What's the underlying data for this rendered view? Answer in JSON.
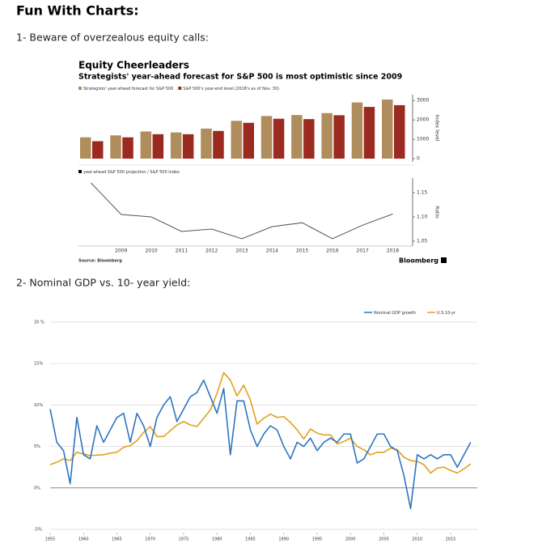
{
  "header": {
    "title": "Fun With Charts:"
  },
  "sections": [
    {
      "heading": "1-  Beware of overzealous equity calls:"
    },
    {
      "heading": "2- Nominal GDP vs. 10- year yield:"
    }
  ],
  "chart_data": [
    {
      "type": "bar",
      "title": "Equity Cheerleaders",
      "subtitle": "Strategists' year-ahead forecast for S&P 500 is most optimistic since 2009",
      "series": [
        {
          "name": "Strategists' year-ahead forecast for S&P 500",
          "color": "#b08d5c",
          "values": [
            1100,
            1200,
            1400,
            1350,
            1550,
            1950,
            2200,
            2250,
            2350,
            2900,
            3050
          ]
        },
        {
          "name": "S&P 500's year-end level (2018's as of Nov. 30)",
          "color": "#9b2b20",
          "values": [
            900,
            1100,
            1260,
            1260,
            1430,
            1850,
            2060,
            2040,
            2240,
            2670,
            2760
          ]
        }
      ],
      "ylim": [
        0,
        3300
      ],
      "yticks": [
        0,
        1000,
        2000,
        3000
      ],
      "y_label": "Index level",
      "source": "Source: Bloomberg",
      "brand": "Bloomberg"
    },
    {
      "type": "line",
      "categories": [
        null,
        "2009",
        "2010",
        "2011",
        "2012",
        "2013",
        "2014",
        "2015",
        "2016",
        "2017",
        "2018"
      ],
      "series": [
        {
          "name": "year-ahead S&P 500 projection / S&P 500 Index",
          "color": "#555555",
          "values": [
            1.17,
            1.105,
            1.1,
            1.07,
            1.075,
            1.055,
            1.08,
            1.088,
            1.055,
            1.083,
            1.106
          ]
        }
      ],
      "ylim": [
        1.04,
        1.18
      ],
      "yticks": [
        1.05,
        {
          "value": 1.1,
          "label": "1.10"
        },
        1.15
      ],
      "y_label": "Ratio"
    },
    {
      "type": "line",
      "x": [
        1955,
        1956,
        1957,
        1958,
        1959,
        1960,
        1961,
        1962,
        1963,
        1964,
        1965,
        1966,
        1967,
        1968,
        1969,
        1970,
        1971,
        1972,
        1973,
        1974,
        1975,
        1976,
        1977,
        1978,
        1979,
        1980,
        1981,
        1982,
        1983,
        1984,
        1985,
        1986,
        1987,
        1988,
        1989,
        1990,
        1991,
        1992,
        1993,
        1994,
        1995,
        1996,
        1997,
        1998,
        1999,
        2000,
        2001,
        2002,
        2003,
        2004,
        2005,
        2006,
        2007,
        2008,
        2009,
        2010,
        2011,
        2012,
        2013,
        2014,
        2015,
        2016,
        2017,
        2018
      ],
      "series": [
        {
          "name": "Nominal GDP growth",
          "color": "#2f74c0",
          "values": [
            9.5,
            5.5,
            4.5,
            0.5,
            8.5,
            4,
            3.5,
            7.5,
            5.5,
            7,
            8.5,
            9,
            5.5,
            9,
            7.5,
            5,
            8.5,
            10,
            11,
            8,
            9.5,
            11,
            11.5,
            13,
            11,
            9,
            12,
            4,
            10.5,
            10.5,
            7,
            5,
            6.5,
            7.5,
            7,
            5,
            3.5,
            5.5,
            5,
            6,
            4.5,
            5.5,
            6,
            5.5,
            6.5,
            6.5,
            3,
            3.5,
            5,
            6.5,
            6.5,
            5,
            4.5,
            1.5,
            -2.5,
            4,
            3.5,
            4,
            3.5,
            4,
            4,
            2.5,
            4,
            5.5
          ]
        },
        {
          "name": "U.S.10-yr",
          "color": "#e0a11b",
          "values": [
            2.8,
            3.1,
            3.5,
            3.3,
            4.3,
            4.1,
            3.9,
            3.95,
            4.0,
            4.2,
            4.3,
            4.9,
            5.1,
            5.7,
            6.7,
            7.4,
            6.2,
            6.2,
            6.9,
            7.6,
            8.0,
            7.6,
            7.4,
            8.4,
            9.4,
            11.4,
            13.9,
            13.0,
            11.1,
            12.4,
            10.6,
            7.7,
            8.4,
            8.9,
            8.5,
            8.6,
            7.9,
            7.0,
            5.9,
            7.1,
            6.6,
            6.4,
            6.4,
            5.3,
            5.6,
            6.0,
            5.0,
            4.6,
            4.0,
            4.3,
            4.3,
            4.8,
            4.6,
            3.7,
            3.3,
            3.2,
            2.8,
            1.8,
            2.4,
            2.5,
            2.1,
            1.8,
            2.3,
            2.9
          ]
        }
      ],
      "xlim": [
        1955,
        2019
      ],
      "xticks": [
        1955,
        1960,
        1965,
        1970,
        1975,
        1980,
        1985,
        1990,
        1995,
        2000,
        2005,
        2010,
        2015
      ],
      "ylim": [
        -5,
        20
      ],
      "yticks": [
        {
          "value": 20,
          "label": "20 %"
        },
        {
          "value": 15,
          "label": "15%"
        },
        {
          "value": 10,
          "label": "10%"
        },
        {
          "value": 5,
          "label": "5%"
        },
        {
          "value": 0,
          "label": "0%"
        },
        {
          "value": -5,
          "label": "-5%"
        }
      ],
      "grid": true
    }
  ]
}
